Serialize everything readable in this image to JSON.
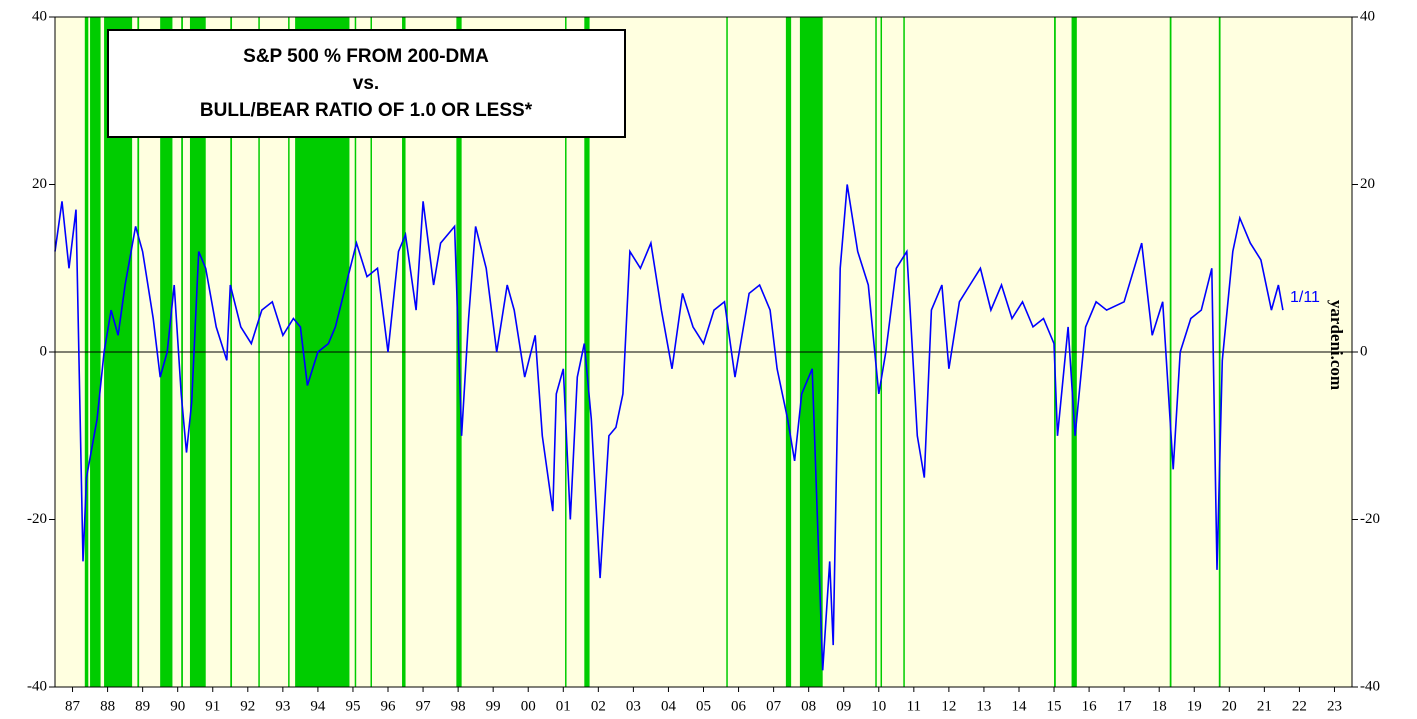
{
  "chart_data": {
    "type": "line",
    "title_lines": [
      "S&P 500 % FROM 200-DMA",
      "vs.",
      "BULL/BEAR RATIO OF 1.0 OR LESS*"
    ],
    "annotations": [
      "1/11",
      "yardeni.com"
    ],
    "x": [
      1987.0,
      1987.2,
      1987.4,
      1987.6,
      1987.8,
      1987.9,
      1988.2,
      1988.4,
      1988.6,
      1988.8,
      1989.0,
      1989.3,
      1989.5,
      1989.8,
      1990.0,
      1990.2,
      1990.4,
      1990.6,
      1990.75,
      1990.9,
      1991.1,
      1991.3,
      1991.6,
      1991.9,
      1992.0,
      1992.3,
      1992.6,
      1992.9,
      1993.2,
      1993.5,
      1993.8,
      1994.0,
      1994.2,
      1994.5,
      1994.8,
      1995.0,
      1995.3,
      1995.6,
      1995.9,
      1996.2,
      1996.5,
      1996.8,
      1997.0,
      1997.3,
      1997.5,
      1997.8,
      1998.0,
      1998.4,
      1998.6,
      1998.8,
      1999.0,
      1999.3,
      1999.6,
      1999.9,
      2000.1,
      2000.4,
      2000.7,
      2000.9,
      2001.2,
      2001.3,
      2001.5,
      2001.7,
      2001.9,
      2002.1,
      2002.3,
      2002.55,
      2002.8,
      2003.0,
      2003.2,
      2003.4,
      2003.7,
      2004.0,
      2004.3,
      2004.6,
      2004.9,
      2005.2,
      2005.5,
      2005.8,
      2006.1,
      2006.4,
      2006.8,
      2007.1,
      2007.4,
      2007.6,
      2007.9,
      2008.1,
      2008.3,
      2008.6,
      2008.9,
      2009.1,
      2009.2,
      2009.4,
      2009.6,
      2009.9,
      2010.2,
      2010.5,
      2010.7,
      2011.0,
      2011.3,
      2011.6,
      2011.8,
      2012.0,
      2012.3,
      2012.5,
      2012.8,
      2013.1,
      2013.4,
      2013.7,
      2014.0,
      2014.3,
      2014.6,
      2014.9,
      2015.2,
      2015.5,
      2015.6,
      2015.9,
      2016.1,
      2016.4,
      2016.7,
      2017.0,
      2017.5,
      2018.0,
      2018.3,
      2018.6,
      2018.9,
      2019.1,
      2019.4,
      2019.7,
      2020.0,
      2020.15,
      2020.3,
      2020.6,
      2020.8,
      2021.1,
      2021.4,
      2021.7,
      2021.9,
      2022.03
    ],
    "values": [
      12,
      18,
      10,
      17,
      -25,
      -15,
      -8,
      0,
      5,
      2,
      8,
      15,
      12,
      4,
      -3,
      0,
      8,
      -5,
      -12,
      -6,
      12,
      10,
      3,
      -1,
      8,
      3,
      1,
      5,
      6,
      2,
      4,
      3,
      -4,
      0,
      1,
      3,
      8,
      13,
      9,
      10,
      0,
      12,
      14,
      5,
      18,
      8,
      13,
      15,
      -10,
      4,
      15,
      10,
      0,
      8,
      5,
      -3,
      2,
      -10,
      -19,
      -5,
      -2,
      -20,
      -3,
      1,
      -8,
      -27,
      -10,
      -9,
      -5,
      12,
      10,
      13,
      5,
      -2,
      7,
      3,
      1,
      5,
      6,
      -3,
      7,
      8,
      5,
      -2,
      -8,
      -13,
      -5,
      -2,
      -38,
      -25,
      -35,
      10,
      20,
      12,
      8,
      -5,
      0,
      10,
      12,
      -10,
      -15,
      5,
      8,
      -2,
      6,
      8,
      10,
      5,
      8,
      4,
      6,
      3,
      4,
      1,
      -10,
      3,
      -10,
      3,
      6,
      5,
      6,
      13,
      2,
      6,
      -14,
      0,
      4,
      5,
      10,
      -26,
      -1,
      12,
      16,
      13,
      11,
      5,
      8,
      5
    ],
    "color": "#0000ff",
    "shaded_periods": [
      [
        1987.85,
        1987.95
      ],
      [
        1988.0,
        1988.3
      ],
      [
        1988.4,
        1989.2
      ],
      [
        1989.35,
        1989.4
      ],
      [
        1990.0,
        1990.35
      ],
      [
        1990.6,
        1990.65
      ],
      [
        1990.85,
        1991.3
      ],
      [
        1992.0,
        1992.05
      ],
      [
        1992.8,
        1992.84
      ],
      [
        1993.65,
        1993.69
      ],
      [
        1993.85,
        1995.4
      ],
      [
        1995.55,
        1995.59
      ],
      [
        1996.0,
        1996.04
      ],
      [
        1996.9,
        1997.0
      ],
      [
        1998.45,
        1998.6
      ],
      [
        2001.55,
        2001.59
      ],
      [
        2002.1,
        2002.25
      ],
      [
        2006.15,
        2006.19
      ],
      [
        2007.85,
        2008.0
      ],
      [
        2008.25,
        2008.9
      ],
      [
        2010.4,
        2010.43
      ],
      [
        2010.55,
        2010.58
      ],
      [
        2011.2,
        2011.24
      ],
      [
        2015.5,
        2015.55
      ],
      [
        2016.0,
        2016.15
      ],
      [
        2018.8,
        2018.85
      ],
      [
        2020.2,
        2020.25
      ]
    ],
    "shade_color": "#00cc00",
    "background": "#ffffe0",
    "xlim": [
      1987,
      2024
    ],
    "ylim": [
      -40,
      40
    ],
    "yticks": [
      -40,
      -20,
      0,
      20,
      40
    ],
    "xticks": [
      {
        "value": 1987.5,
        "label": "87"
      },
      {
        "value": 1988.5,
        "label": "88"
      },
      {
        "value": 1989.5,
        "label": "89"
      },
      {
        "value": 1990.5,
        "label": "90"
      },
      {
        "value": 1991.5,
        "label": "91"
      },
      {
        "value": 1992.5,
        "label": "92"
      },
      {
        "value": 1993.5,
        "label": "93"
      },
      {
        "value": 1994.5,
        "label": "94"
      },
      {
        "value": 1995.5,
        "label": "95"
      },
      {
        "value": 1996.5,
        "label": "96"
      },
      {
        "value": 1997.5,
        "label": "97"
      },
      {
        "value": 1998.5,
        "label": "98"
      },
      {
        "value": 1999.5,
        "label": "99"
      },
      {
        "value": 2000.5,
        "label": "00"
      },
      {
        "value": 2001.5,
        "label": "01"
      },
      {
        "value": 2002.5,
        "label": "02"
      },
      {
        "value": 2003.5,
        "label": "03"
      },
      {
        "value": 2004.5,
        "label": "04"
      },
      {
        "value": 2005.5,
        "label": "05"
      },
      {
        "value": 2006.5,
        "label": "06"
      },
      {
        "value": 2007.5,
        "label": "07"
      },
      {
        "value": 2008.5,
        "label": "08"
      },
      {
        "value": 2009.5,
        "label": "09"
      },
      {
        "value": 2010.5,
        "label": "10"
      },
      {
        "value": 2011.5,
        "label": "11"
      },
      {
        "value": 2012.5,
        "label": "12"
      },
      {
        "value": 2013.5,
        "label": "13"
      },
      {
        "value": 2014.5,
        "label": "14"
      },
      {
        "value": 2015.5,
        "label": "15"
      },
      {
        "value": 2016.5,
        "label": "16"
      },
      {
        "value": 2017.5,
        "label": "17"
      },
      {
        "value": 2018.5,
        "label": "18"
      },
      {
        "value": 2019.5,
        "label": "19"
      },
      {
        "value": 2020.5,
        "label": "20"
      },
      {
        "value": 2021.5,
        "label": "21"
      },
      {
        "value": 2022.5,
        "label": "22"
      },
      {
        "value": 2023.5,
        "label": "23"
      }
    ]
  }
}
